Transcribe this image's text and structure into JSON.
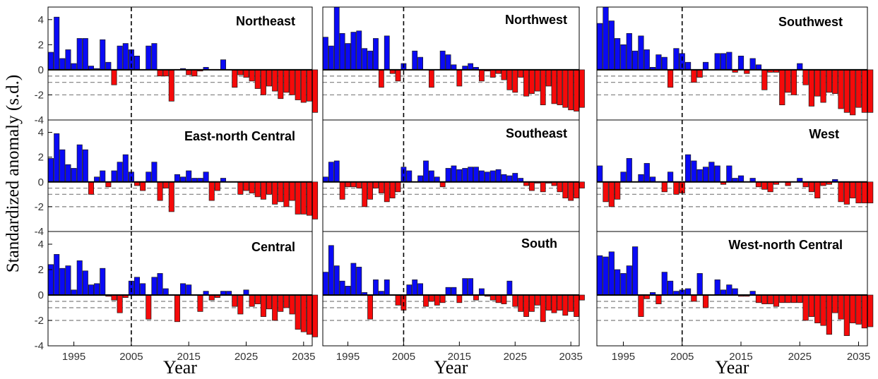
{
  "figure": {
    "ylabel": "Standardized anomaly (s.d.)",
    "xlabel": "Year",
    "yticks": [
      4,
      2,
      0,
      -2,
      -4
    ],
    "xticks": [
      1995,
      2005,
      2015,
      2025,
      2035
    ],
    "colors": {
      "positive": "#0a0af5",
      "negative": "#f50a0a",
      "edge": "#1a1a1a",
      "reference": "#7f7f7f",
      "divider": "#000000"
    }
  },
  "chart_data": [
    {
      "type": "bar",
      "title": "Northeast",
      "x_start": 1991,
      "ylim": [
        -4,
        5
      ],
      "divider_year": 2005,
      "reference_lines": [
        -0.5,
        -1,
        -2
      ],
      "values": [
        1.4,
        4.2,
        0.9,
        1.6,
        0.5,
        2.5,
        2.5,
        0.3,
        0.1,
        2.4,
        0.6,
        -1.2,
        1.9,
        2.1,
        1.6,
        1.1,
        0.0,
        1.9,
        2.1,
        -0.5,
        -0.5,
        -2.5,
        0.0,
        0.1,
        -0.4,
        -0.5,
        -0.1,
        0.2,
        0.0,
        0.0,
        0.8,
        0.0,
        -1.4,
        -0.4,
        -0.6,
        -0.9,
        -1.5,
        -2.0,
        -1.3,
        -1.7,
        -2.3,
        -1.8,
        -2.0,
        -2.4,
        -2.6,
        -2.5,
        -3.4
      ]
    },
    {
      "type": "bar",
      "title": "Northwest",
      "x_start": 1991,
      "ylim": [
        -4,
        5
      ],
      "divider_year": 2005,
      "reference_lines": [
        -0.5,
        -1,
        -2
      ],
      "values": [
        2.6,
        1.9,
        5.0,
        2.9,
        2.1,
        3.0,
        3.1,
        1.7,
        1.5,
        2.5,
        -1.4,
        2.7,
        -0.3,
        -0.9,
        0.5,
        0.0,
        1.5,
        1.0,
        0.0,
        -1.4,
        0.0,
        1.5,
        1.2,
        0.4,
        -1.3,
        0.3,
        0.5,
        0.2,
        -0.9,
        -0.1,
        -0.6,
        -0.3,
        -0.8,
        -1.6,
        -1.8,
        -0.6,
        -2.1,
        -1.9,
        -1.7,
        -2.8,
        -1.3,
        -2.7,
        -2.8,
        -3.0,
        -3.2,
        -3.3,
        -3.0
      ]
    },
    {
      "type": "bar",
      "title": "Southwest",
      "x_start": 1991,
      "ylim": [
        -4,
        5
      ],
      "divider_year": 2005,
      "reference_lines": [
        -0.5,
        -1,
        -2
      ],
      "values": [
        3.7,
        5.0,
        3.9,
        2.5,
        2.0,
        2.9,
        1.5,
        2.7,
        1.6,
        0.2,
        1.2,
        1.0,
        -1.4,
        1.7,
        1.3,
        0.6,
        -1.0,
        -0.6,
        0.6,
        0.0,
        1.3,
        1.3,
        1.4,
        -0.2,
        1.1,
        -0.3,
        0.9,
        0.4,
        -1.6,
        -0.2,
        -0.2,
        -2.8,
        -1.8,
        -2.0,
        0.5,
        -1.2,
        -2.9,
        -2.1,
        -2.6,
        -1.8,
        -1.9,
        -3.1,
        -3.4,
        -3.6,
        -3.0,
        -3.4,
        -3.4
      ]
    },
    {
      "type": "bar",
      "title": "East-north Central",
      "x_start": 1991,
      "ylim": [
        -4,
        5
      ],
      "divider_year": 2005,
      "reference_lines": [
        -0.5,
        -1,
        -2
      ],
      "values": [
        1.9,
        3.9,
        2.6,
        1.4,
        1.1,
        3.0,
        2.6,
        -1.0,
        0.4,
        0.9,
        -0.4,
        0.9,
        1.6,
        2.2,
        0.8,
        -0.3,
        -0.7,
        0.8,
        1.6,
        -1.5,
        -0.5,
        -2.4,
        0.6,
        0.4,
        0.9,
        0.3,
        0.3,
        0.8,
        -1.5,
        -0.7,
        0.3,
        0.0,
        0.0,
        -1.0,
        -0.7,
        -0.9,
        -1.2,
        -1.4,
        -1.0,
        -1.8,
        -1.6,
        -2.0,
        -1.5,
        -2.6,
        -2.6,
        -2.7,
        -3.0
      ]
    },
    {
      "type": "bar",
      "title": "Southeast",
      "x_start": 1991,
      "ylim": [
        -4,
        5
      ],
      "divider_year": 2005,
      "reference_lines": [
        -0.5,
        -1,
        -2
      ],
      "values": [
        0.4,
        1.6,
        1.7,
        -1.4,
        -0.4,
        -0.4,
        -0.5,
        -2.0,
        -1.4,
        -0.5,
        -0.9,
        -1.6,
        -1.3,
        -0.8,
        1.2,
        0.9,
        0.0,
        0.5,
        1.7,
        0.9,
        0.4,
        -0.4,
        1.1,
        1.3,
        1.0,
        1.1,
        1.2,
        1.2,
        0.9,
        0.8,
        0.9,
        1.0,
        0.6,
        0.5,
        0.7,
        0.3,
        -0.3,
        -0.7,
        -0.1,
        -0.8,
        -0.1,
        -0.3,
        -0.8,
        -1.3,
        -1.5,
        -1.3,
        -0.5
      ]
    },
    {
      "type": "bar",
      "title": "West",
      "x_start": 1991,
      "ylim": [
        -4,
        5
      ],
      "divider_year": 2005,
      "reference_lines": [
        -0.5,
        -1,
        -2
      ],
      "values": [
        1.3,
        -1.6,
        -2.0,
        -1.4,
        0.8,
        1.9,
        0.0,
        0.6,
        1.5,
        0.4,
        0.0,
        -0.8,
        0.8,
        -1.0,
        -0.9,
        2.2,
        1.7,
        1.0,
        1.2,
        1.6,
        1.3,
        -0.2,
        1.3,
        0.3,
        0.5,
        0.0,
        0.3,
        -0.4,
        -0.6,
        -0.8,
        -0.2,
        0.0,
        -0.3,
        0.0,
        0.3,
        -0.4,
        -0.8,
        -1.3,
        -0.3,
        -0.2,
        0.2,
        -1.6,
        -1.8,
        -1.3,
        -1.7,
        -1.7,
        -1.7
      ]
    },
    {
      "type": "bar",
      "title": "Central",
      "x_start": 1991,
      "ylim": [
        -4,
        5
      ],
      "divider_year": 2005,
      "reference_lines": [
        -0.5,
        -1,
        -2
      ],
      "values": [
        2.4,
        3.2,
        2.1,
        2.3,
        0.4,
        2.7,
        1.9,
        0.8,
        0.9,
        2.1,
        -0.1,
        -0.4,
        -1.4,
        -0.2,
        1.1,
        1.4,
        0.9,
        -1.9,
        1.4,
        1.7,
        0.5,
        0.0,
        -2.1,
        0.9,
        0.8,
        0.0,
        -1.3,
        0.3,
        -0.4,
        -0.2,
        0.3,
        0.3,
        -0.9,
        -1.5,
        0.4,
        -0.9,
        -0.7,
        -1.7,
        -1.1,
        -2.0,
        -1.3,
        -1.0,
        -1.5,
        -2.7,
        -2.9,
        -3.1,
        -3.3
      ]
    },
    {
      "type": "bar",
      "title": "South",
      "x_start": 1991,
      "ylim": [
        -4,
        5
      ],
      "divider_year": 2005,
      "reference_lines": [
        -0.5,
        -1,
        -2
      ],
      "values": [
        1.8,
        3.9,
        2.3,
        1.1,
        0.7,
        2.5,
        2.2,
        0.2,
        -1.9,
        1.2,
        0.3,
        1.2,
        0.0,
        -0.8,
        -1.2,
        0.8,
        1.2,
        0.9,
        -0.9,
        -0.5,
        -0.8,
        -0.6,
        0.6,
        0.6,
        -0.6,
        1.3,
        1.3,
        -0.4,
        0.5,
        -0.1,
        -0.4,
        -0.6,
        -0.7,
        1.1,
        -0.9,
        -1.3,
        -1.7,
        -1.3,
        -0.8,
        -2.1,
        -1.2,
        -1.4,
        -1.2,
        -1.6,
        -1.3,
        -1.7,
        -0.4
      ]
    },
    {
      "type": "bar",
      "title": "West-north Central",
      "x_start": 1991,
      "ylim": [
        -4,
        5
      ],
      "divider_year": 2005,
      "reference_lines": [
        -0.5,
        -1,
        -2
      ],
      "values": [
        3.1,
        3.0,
        3.4,
        2.0,
        1.7,
        2.3,
        3.8,
        -1.7,
        -0.3,
        0.2,
        -0.7,
        1.8,
        1.1,
        0.3,
        0.4,
        0.5,
        -0.5,
        1.7,
        -1.0,
        0.0,
        1.2,
        0.4,
        0.8,
        0.5,
        -0.1,
        -0.1,
        0.3,
        -0.6,
        -0.7,
        -0.7,
        -0.9,
        -0.6,
        -0.6,
        -0.6,
        -0.6,
        -2.0,
        -1.7,
        -2.2,
        -2.4,
        -3.1,
        -1.4,
        -1.9,
        -3.2,
        -2.2,
        -2.3,
        -2.6,
        -2.5
      ]
    }
  ]
}
